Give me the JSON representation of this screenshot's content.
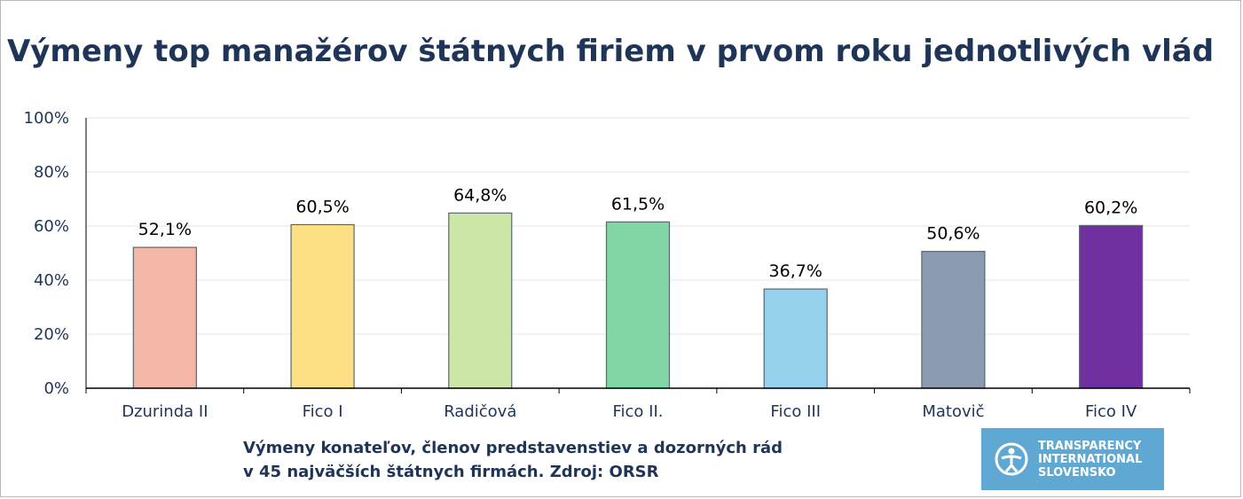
{
  "chart_data": {
    "type": "bar",
    "title": "Výmeny top manažérov štátnych firiem v prvom roku jednotlivých vlád",
    "categories": [
      "Dzurinda II",
      "Fico I",
      "Radičová",
      "Fico II.",
      "Fico III",
      "Matovič",
      "Fico IV"
    ],
    "values": [
      52.1,
      60.5,
      64.8,
      61.5,
      36.7,
      50.6,
      60.2
    ],
    "value_labels": [
      "52,1%",
      "60,5%",
      "64,8%",
      "61,5%",
      "36,7%",
      "50,6%",
      "60,2%"
    ],
    "bar_colors": [
      "#f4b6a6",
      "#fde083",
      "#cbe6a6",
      "#80d6a4",
      "#96d2ee",
      "#8c9ab2",
      "#7030a0"
    ],
    "ylim": [
      0,
      100
    ],
    "yticks": [
      0,
      20,
      40,
      60,
      80,
      100
    ],
    "ytick_labels": [
      "0%",
      "20%",
      "40%",
      "60%",
      "80%",
      "100%"
    ],
    "xlabel": "",
    "ylabel": "",
    "grid": true,
    "legend": "none"
  },
  "footnote": {
    "line1": "Výmeny konateľov, členov predstavenstiev a dozorných rád",
    "line2": "v 45 najväčších štátnych firmách. Zdroj: ORSR"
  },
  "logo": {
    "line1": "TRANSPARENCY",
    "line2": "INTERNATIONAL",
    "line3": "SLOVENSKO",
    "background": "#5fa8d3"
  },
  "colors": {
    "title": "#1f3558",
    "axis_text": "#1f3558",
    "gridline": "#e6e6e6",
    "axis": "#000000"
  }
}
